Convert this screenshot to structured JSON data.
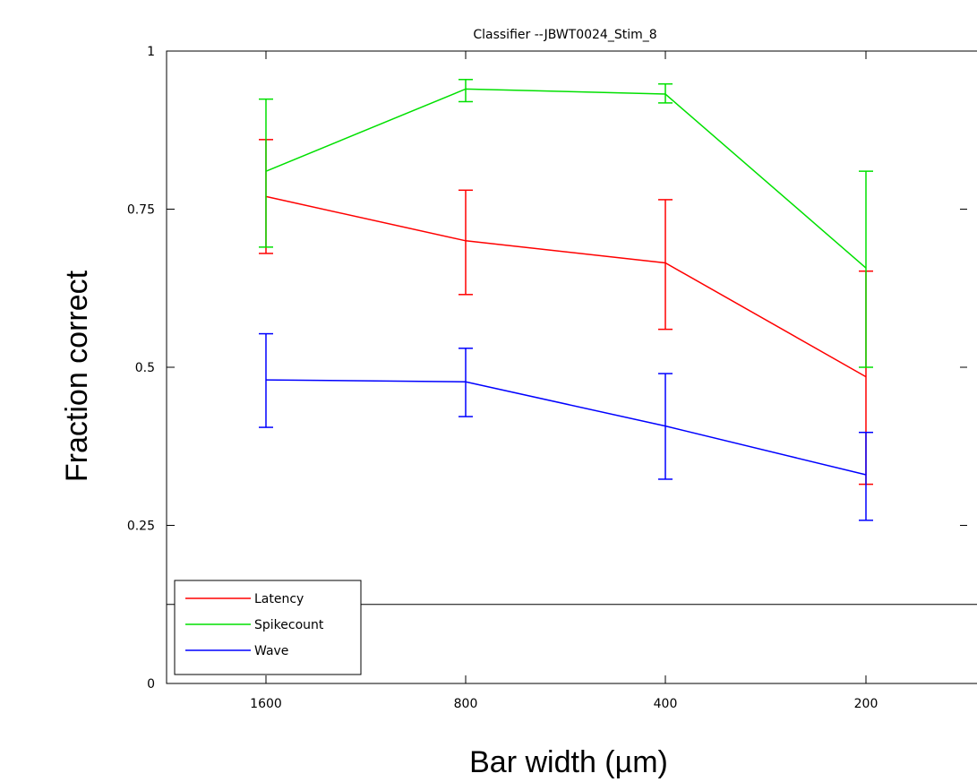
{
  "chart_data": {
    "type": "line",
    "title": "Classifier   --JBWT0024_Stim_8",
    "xlabel": "Bar width (µm)",
    "ylabel": "Fraction correct",
    "categories": [
      "1600",
      "800",
      "400",
      "200"
    ],
    "ylim": [
      0,
      1
    ],
    "yticks": [
      "0",
      "0.25",
      "0.5",
      "0.75",
      "1"
    ],
    "grid": false,
    "legend_position": "bottom-left",
    "series": [
      {
        "name": "Latency",
        "color": "#ff0000",
        "values": [
          0.77,
          0.7,
          0.665,
          0.485
        ],
        "err_low": [
          0.68,
          0.615,
          0.56,
          0.315
        ],
        "err_high": [
          0.86,
          0.78,
          0.765,
          0.652
        ]
      },
      {
        "name": "Spikecount",
        "color": "#00e000",
        "values": [
          0.81,
          0.94,
          0.932,
          0.657
        ],
        "err_low": [
          0.69,
          0.92,
          0.918,
          0.5
        ],
        "err_high": [
          0.924,
          0.955,
          0.948,
          0.81
        ]
      },
      {
        "name": "Wave",
        "color": "#0000ff",
        "values": [
          0.48,
          0.477,
          0.407,
          0.33
        ],
        "err_low": [
          0.405,
          0.422,
          0.323,
          0.258
        ],
        "err_high": [
          0.553,
          0.53,
          0.49,
          0.397
        ]
      }
    ],
    "reference_line": 0.125
  }
}
